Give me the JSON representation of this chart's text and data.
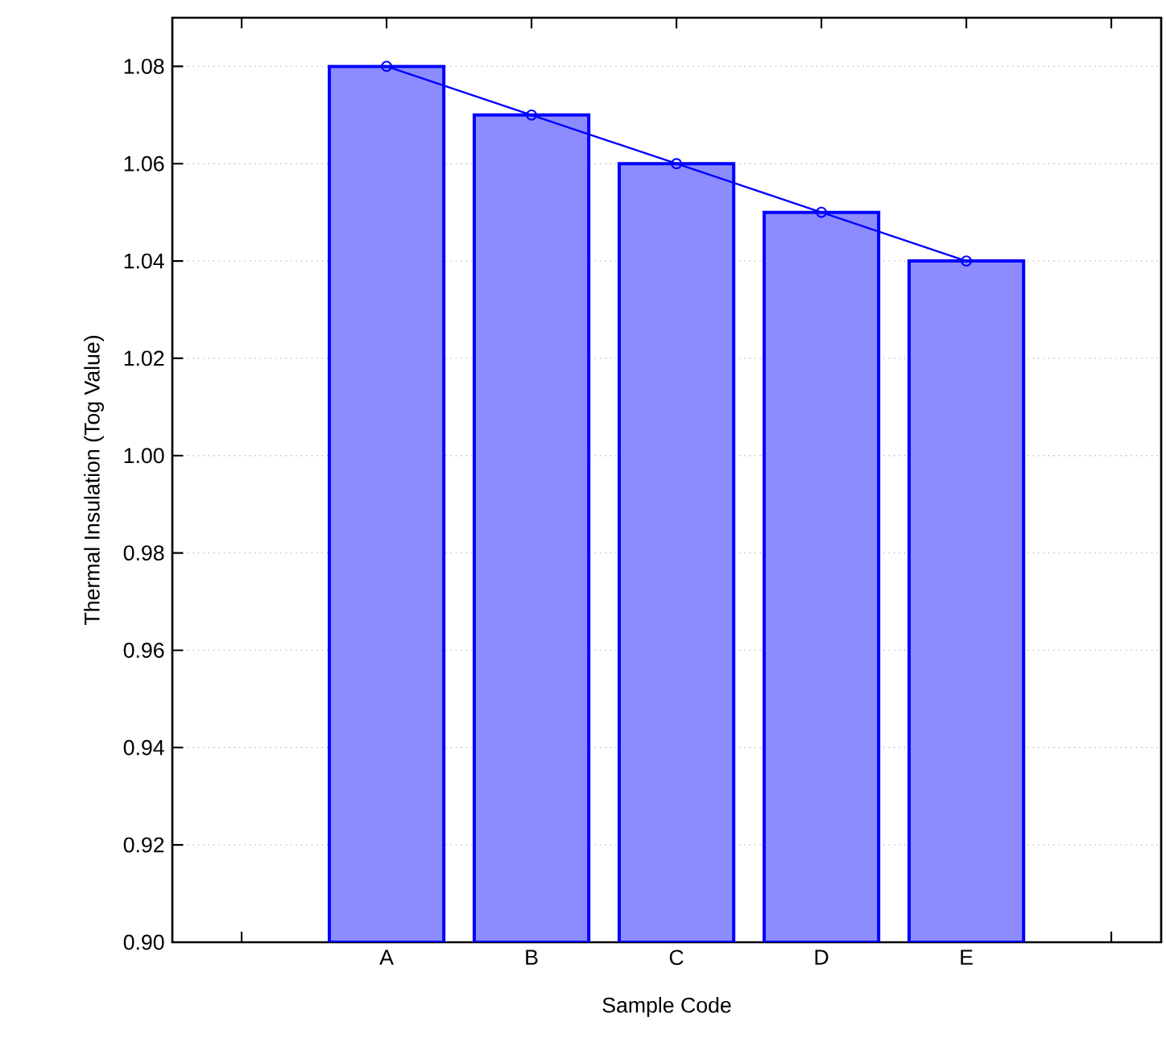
{
  "chart_data": {
    "type": "bar",
    "xlabel": "Sample Code",
    "ylabel": "Thermal Insulation (Tog Value)",
    "categories": [
      "A",
      "B",
      "C",
      "D",
      "E"
    ],
    "series": [
      {
        "color": "#8c8cff",
        "values": [
          1.08,
          1.07,
          1.06,
          1.05,
          1.04
        ]
      },
      {
        "type": "line",
        "color": "#0000ff",
        "marker": "circle",
        "values": [
          1.08,
          1.07,
          1.06,
          1.05,
          1.04
        ]
      }
    ],
    "ylim": [
      0.9,
      1.09
    ],
    "yticks": [
      {
        "value": 0.9,
        "label": "0.90"
      },
      0.92,
      0.94,
      0.96,
      0.98,
      {
        "value": 1,
        "label": "1.00"
      },
      1.02,
      1.04,
      1.06,
      1.08
    ],
    "grid": "y"
  }
}
